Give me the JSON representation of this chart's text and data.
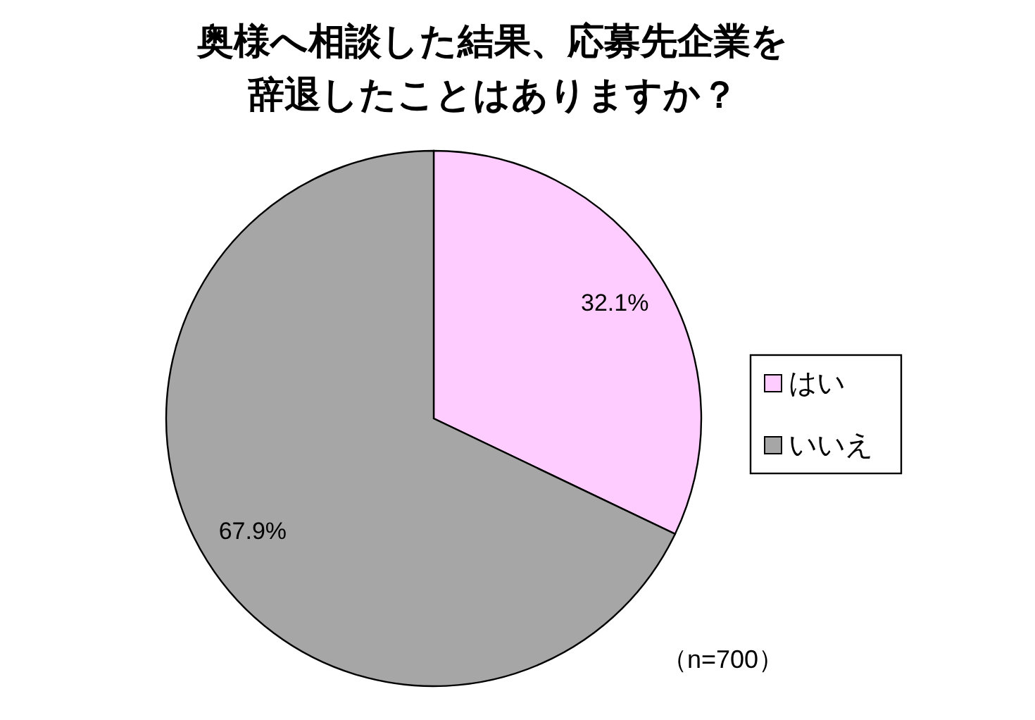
{
  "chart_data": {
    "type": "pie",
    "title": "奥様へ相談した結果、応募先企業を辞退したことはありますか？",
    "categories": [
      "はい",
      "いいえ"
    ],
    "values": [
      32.1,
      67.9
    ],
    "colors": [
      "#ffccff",
      "#a6a6a6"
    ],
    "value_labels": [
      "32.1%",
      "67.9%"
    ],
    "legend": "right",
    "annotations": [
      "（n=700）"
    ]
  }
}
